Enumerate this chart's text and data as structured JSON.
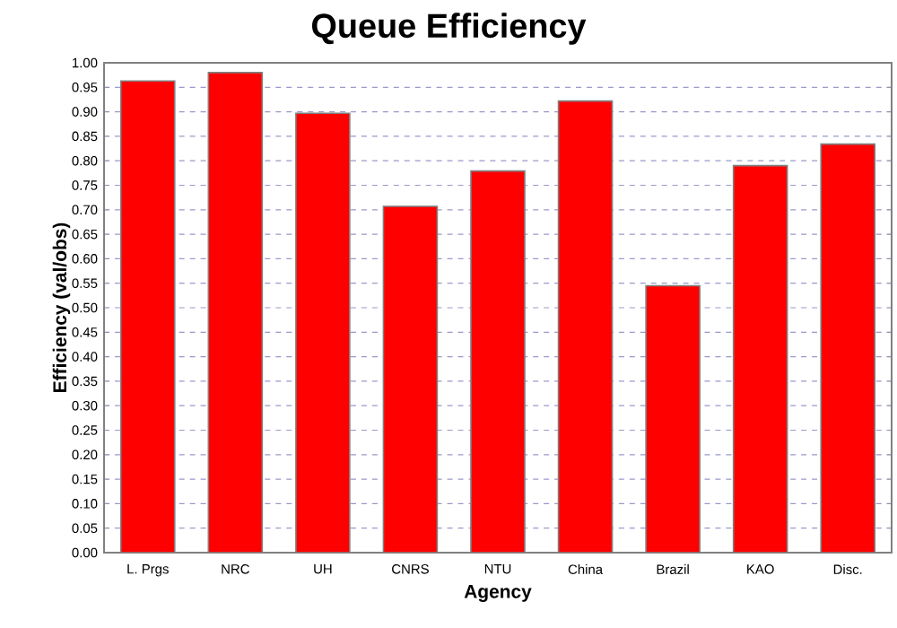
{
  "chart_data": {
    "type": "bar",
    "title": "Queue Efficiency",
    "xlabel": "Agency",
    "ylabel": "Efficiency (val/obs)",
    "categories": [
      "L. Prgs",
      "NRC",
      "UH",
      "CNRS",
      "NTU",
      "China",
      "Brazil",
      "KAO",
      "Disc."
    ],
    "values": [
      0.963,
      0.98,
      0.897,
      0.707,
      0.779,
      0.922,
      0.545,
      0.79,
      0.834
    ],
    "color": "#ff0000",
    "ylim": [
      0,
      1
    ],
    "yticks": [
      {
        "value": 0,
        "label": "0.00"
      },
      {
        "value": 0.05,
        "label": "0.05"
      },
      {
        "value": 0.1,
        "label": "0.10"
      },
      {
        "value": 0.15,
        "label": "0.15"
      },
      {
        "value": 0.2,
        "label": "0.20"
      },
      {
        "value": 0.25,
        "label": "0.25"
      },
      {
        "value": 0.3,
        "label": "0.30"
      },
      {
        "value": 0.35,
        "label": "0.35"
      },
      {
        "value": 0.4,
        "label": "0.40"
      },
      {
        "value": 0.45,
        "label": "0.45"
      },
      {
        "value": 0.5,
        "label": "0.50"
      },
      {
        "value": 0.55,
        "label": "0.55"
      },
      {
        "value": 0.6,
        "label": "0.60"
      },
      {
        "value": 0.65,
        "label": "0.65"
      },
      {
        "value": 0.7,
        "label": "0.70"
      },
      {
        "value": 0.75,
        "label": "0.75"
      },
      {
        "value": 0.8,
        "label": "0.80"
      },
      {
        "value": 0.85,
        "label": "0.85"
      },
      {
        "value": 0.9,
        "label": "0.90"
      },
      {
        "value": 0.95,
        "label": "0.95"
      },
      {
        "value": 1,
        "label": "1.00"
      }
    ],
    "grid": "y"
  }
}
